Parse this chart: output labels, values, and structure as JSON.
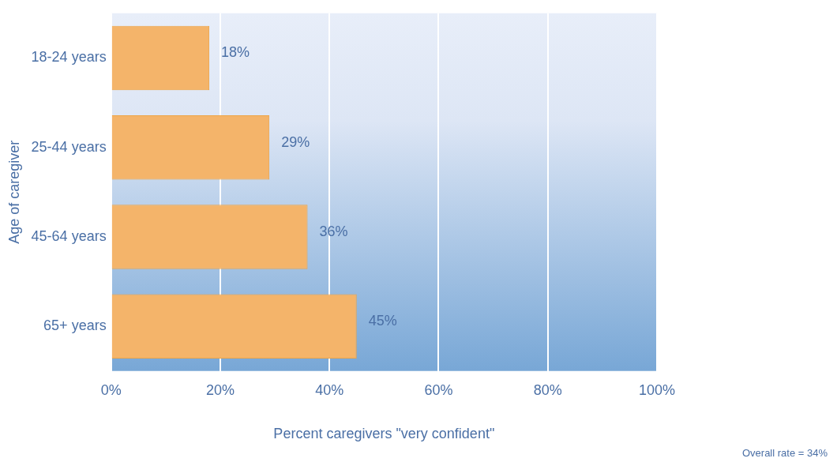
{
  "chart_data": {
    "type": "bar",
    "orientation": "horizontal",
    "ylabel": "Age of caregiver",
    "xlabel": "Percent caregivers \"very confident\"",
    "categories": [
      "18-24 years",
      "25-44 years",
      "45-64 years",
      "65+ years"
    ],
    "values": [
      18,
      29,
      36,
      45
    ],
    "value_labels": [
      "18%",
      "29%",
      "36%",
      "45%"
    ],
    "color": "#f4b46a",
    "xlim": [
      0,
      100
    ],
    "xticks": [
      {
        "value": 0,
        "label": "0%"
      },
      {
        "value": 20,
        "label": "20%"
      },
      {
        "value": 40,
        "label": "40%"
      },
      {
        "value": 60,
        "label": "60%"
      },
      {
        "value": 80,
        "label": "80%"
      },
      {
        "value": 100,
        "label": "100%"
      }
    ],
    "grid": "x",
    "legend": false,
    "annotations": [
      "Overall rate = 34%"
    ]
  }
}
